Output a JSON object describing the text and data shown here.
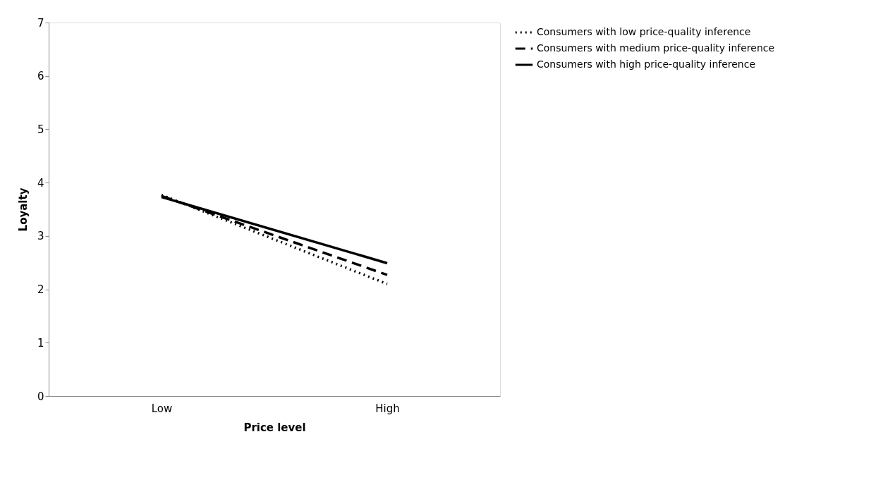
{
  "chart_data": {
    "type": "line",
    "xlabel": "Price level",
    "ylabel": "Loyalty",
    "categories": [
      "Low",
      "High"
    ],
    "series": [
      {
        "name": "Consumers with low price-quality inference",
        "color": "#000000",
        "line_style": "dotted",
        "values": [
          3.77,
          2.1
        ]
      },
      {
        "name": "Consumers with medium price-quality inference",
        "color": "#000000",
        "line_style": "dashed",
        "values": [
          3.75,
          2.27
        ]
      },
      {
        "name": "Consumers with high price-quality inference",
        "color": "#000000",
        "line_style": "solid",
        "values": [
          3.73,
          2.49
        ]
      }
    ],
    "ylim": [
      0,
      7
    ],
    "yticks": [
      0,
      1,
      2,
      3,
      4,
      5,
      6,
      7
    ],
    "grid": false,
    "legend": "right",
    "marker": "none"
  }
}
